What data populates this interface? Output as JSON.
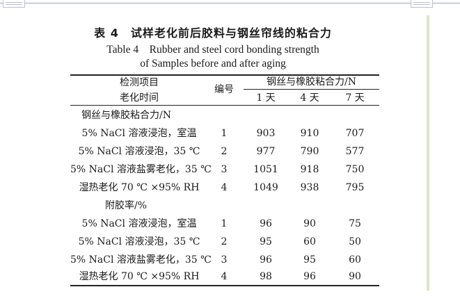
{
  "title_cn": "表 4　试样老化前后胶料与钢丝帘线的粘合力",
  "title_en_line1": "Table 4　Rubber and steel cord bonding strength",
  "title_en_line2": "of Samples before and after aging",
  "header": {
    "detect_item": "检测项目",
    "aging_time": "老化时间",
    "number": "编号",
    "group": "钢丝与橡胶粘合力/N",
    "days": [
      "1 天",
      "4 天",
      "7 天"
    ]
  },
  "section1": {
    "title": "钢丝与橡胶粘合力/N",
    "rows": [
      {
        "label": "5% NaCl 溶液浸泡，室温",
        "no": "1",
        "d1": "903",
        "d4": "910",
        "d7": "707"
      },
      {
        "label": "5% NaCl 溶液浸泡，35 ℃",
        "no": "2",
        "d1": "977",
        "d4": "790",
        "d7": "577"
      },
      {
        "label": "5% NaCl 溶液盐雾老化，35 ℃",
        "no": "3",
        "d1": "1051",
        "d4": "918",
        "d7": "750"
      },
      {
        "label": "湿热老化 70 ℃ ×95% RH",
        "no": "4",
        "d1": "1049",
        "d4": "938",
        "d7": "795"
      }
    ]
  },
  "section2": {
    "title": "附胶率/%",
    "rows": [
      {
        "label": "5% NaCl 溶液浸泡，室温",
        "no": "1",
        "d1": "96",
        "d4": "90",
        "d7": "75"
      },
      {
        "label": "5% NaCl 溶液浸泡，35 ℃",
        "no": "2",
        "d1": "95",
        "d4": "60",
        "d7": "50"
      },
      {
        "label": "5% NaCl 溶液盐雾老化，35 ℃",
        "no": "3",
        "d1": "96",
        "d4": "95",
        "d7": "60"
      },
      {
        "label": "湿热老化 70 ℃ ×95% RH",
        "no": "4",
        "d1": "98",
        "d4": "96",
        "d7": "90"
      }
    ]
  }
}
